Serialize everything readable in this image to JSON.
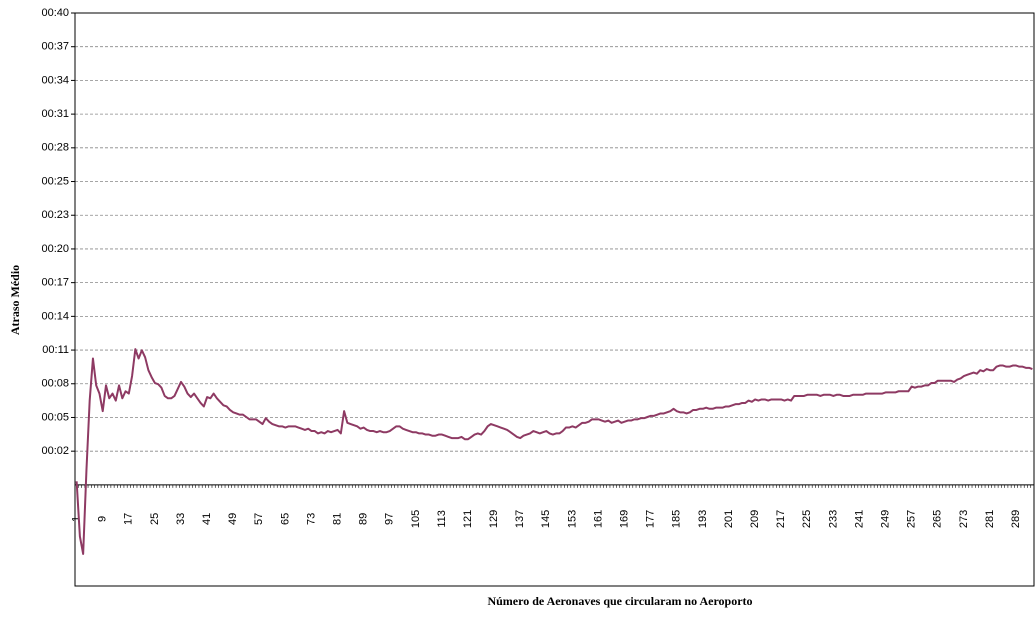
{
  "chart_data": {
    "type": "line",
    "x_label": "Número de Aeronaves que circularam  no Aeroporto",
    "y_label": "Atraso Médio",
    "color": "#8e3a63",
    "grid": true,
    "ylim": [
      -8.64,
      40.32
    ],
    "yticks": [
      {
        "value": 2.88,
        "label": "00:02"
      },
      {
        "value": 5.76,
        "label": "00:05"
      },
      {
        "value": 8.64,
        "label": "00:08"
      },
      {
        "value": 11.52,
        "label": "00:11"
      },
      {
        "value": 14.4,
        "label": "00:14"
      },
      {
        "value": 17.28,
        "label": "00:17"
      },
      {
        "value": 20.16,
        "label": "00:20"
      },
      {
        "value": 23.04,
        "label": "00:23"
      },
      {
        "value": 25.92,
        "label": "00:25"
      },
      {
        "value": 28.8,
        "label": "00:28"
      },
      {
        "value": 31.68,
        "label": "00:31"
      },
      {
        "value": 34.56,
        "label": "00:34"
      },
      {
        "value": 37.44,
        "label": "00:37"
      },
      {
        "value": 40.32,
        "label": "00:40"
      }
    ],
    "categories": [
      1,
      null,
      null,
      null,
      null,
      null,
      null,
      null,
      9,
      null,
      null,
      null,
      null,
      null,
      null,
      null,
      17,
      null,
      null,
      null,
      null,
      null,
      null,
      null,
      25,
      null,
      null,
      null,
      null,
      null,
      null,
      null,
      33,
      null,
      null,
      null,
      null,
      null,
      null,
      null,
      41,
      null,
      null,
      null,
      null,
      null,
      null,
      null,
      49,
      null,
      null,
      null,
      null,
      null,
      null,
      null,
      57,
      null,
      null,
      null,
      null,
      null,
      null,
      null,
      65,
      null,
      null,
      null,
      null,
      null,
      null,
      null,
      73,
      null,
      null,
      null,
      null,
      null,
      null,
      null,
      81,
      null,
      null,
      null,
      null,
      null,
      null,
      null,
      89,
      null,
      null,
      null,
      null,
      null,
      null,
      null,
      97,
      null,
      null,
      null,
      null,
      null,
      null,
      null,
      105,
      null,
      null,
      null,
      null,
      null,
      null,
      null,
      113,
      null,
      null,
      null,
      null,
      null,
      null,
      null,
      121,
      null,
      null,
      null,
      null,
      null,
      null,
      null,
      129,
      null,
      null,
      null,
      null,
      null,
      null,
      null,
      137,
      null,
      null,
      null,
      null,
      null,
      null,
      null,
      145,
      null,
      null,
      null,
      null,
      null,
      null,
      null,
      153,
      null,
      null,
      null,
      null,
      null,
      null,
      null,
      161,
      null,
      null,
      null,
      null,
      null,
      null,
      null,
      169,
      null,
      null,
      null,
      null,
      null,
      null,
      null,
      177,
      null,
      null,
      null,
      null,
      null,
      null,
      null,
      185,
      null,
      null,
      null,
      null,
      null,
      null,
      null,
      193,
      null,
      null,
      null,
      null,
      null,
      null,
      null,
      201,
      null,
      null,
      null,
      null,
      null,
      null,
      null,
      209,
      null,
      null,
      null,
      null,
      null,
      null,
      null,
      217,
      null,
      null,
      null,
      null,
      null,
      null,
      null,
      225,
      null,
      null,
      null,
      null,
      null,
      null,
      null,
      233,
      null,
      null,
      null,
      null,
      null,
      null,
      null,
      241,
      null,
      null,
      null,
      null,
      null,
      null,
      null,
      249,
      null,
      null,
      null,
      null,
      null,
      null,
      null,
      257,
      null,
      null,
      null,
      null,
      null,
      null,
      null,
      265,
      null,
      null,
      null,
      null,
      null,
      null,
      null,
      273,
      null,
      null,
      null,
      null,
      null,
      null,
      null,
      281,
      null,
      null,
      null,
      null,
      null,
      null,
      null,
      289,
      null,
      null,
      null,
      null,
      null
    ],
    "values": [
      0.3,
      -4.4,
      -5.9,
      1.2,
      7.2,
      10.8,
      8.5,
      7.8,
      6.3,
      8.5,
      7.4,
      7.8,
      7.2,
      8.5,
      7.4,
      8.0,
      7.8,
      9.3,
      11.6,
      10.8,
      11.5,
      10.9,
      9.8,
      9.2,
      8.7,
      8.6,
      8.3,
      7.6,
      7.4,
      7.4,
      7.6,
      8.2,
      8.8,
      8.4,
      7.8,
      7.5,
      7.8,
      7.4,
      7.0,
      6.7,
      7.5,
      7.4,
      7.8,
      7.4,
      7.1,
      6.8,
      6.7,
      6.4,
      6.2,
      6.1,
      6.0,
      6.0,
      5.8,
      5.6,
      5.6,
      5.6,
      5.4,
      5.2,
      5.7,
      5.4,
      5.2,
      5.1,
      5.0,
      5.0,
      4.9,
      5.0,
      5.0,
      5.0,
      4.9,
      4.8,
      4.7,
      4.8,
      4.6,
      4.6,
      4.4,
      4.5,
      4.4,
      4.6,
      4.5,
      4.6,
      4.7,
      4.4,
      6.3,
      5.3,
      5.2,
      5.1,
      5.0,
      4.8,
      4.9,
      4.7,
      4.6,
      4.6,
      4.5,
      4.6,
      4.5,
      4.5,
      4.6,
      4.8,
      5.0,
      5.0,
      4.8,
      4.7,
      4.6,
      4.5,
      4.5,
      4.4,
      4.4,
      4.3,
      4.3,
      4.2,
      4.2,
      4.3,
      4.3,
      4.2,
      4.1,
      4.0,
      4.0,
      4.0,
      4.1,
      3.9,
      3.9,
      4.1,
      4.3,
      4.4,
      4.3,
      4.6,
      5.0,
      5.2,
      5.1,
      5.0,
      4.9,
      4.8,
      4.7,
      4.5,
      4.3,
      4.1,
      4.0,
      4.2,
      4.3,
      4.4,
      4.6,
      4.5,
      4.4,
      4.5,
      4.6,
      4.4,
      4.3,
      4.4,
      4.4,
      4.6,
      4.9,
      4.9,
      5.0,
      4.9,
      5.1,
      5.3,
      5.3,
      5.4,
      5.6,
      5.6,
      5.6,
      5.5,
      5.4,
      5.5,
      5.3,
      5.4,
      5.5,
      5.3,
      5.4,
      5.5,
      5.5,
      5.6,
      5.6,
      5.7,
      5.7,
      5.8,
      5.9,
      5.9,
      6.0,
      6.1,
      6.1,
      6.2,
      6.3,
      6.5,
      6.3,
      6.2,
      6.2,
      6.1,
      6.2,
      6.4,
      6.4,
      6.5,
      6.5,
      6.6,
      6.5,
      6.5,
      6.6,
      6.6,
      6.6,
      6.7,
      6.7,
      6.8,
      6.9,
      6.9,
      7.0,
      7.0,
      7.2,
      7.1,
      7.3,
      7.2,
      7.3,
      7.3,
      7.2,
      7.3,
      7.3,
      7.3,
      7.3,
      7.2,
      7.3,
      7.2,
      7.6,
      7.6,
      7.6,
      7.6,
      7.7,
      7.7,
      7.7,
      7.7,
      7.6,
      7.7,
      7.7,
      7.7,
      7.6,
      7.7,
      7.7,
      7.6,
      7.6,
      7.6,
      7.7,
      7.7,
      7.7,
      7.7,
      7.8,
      7.8,
      7.8,
      7.8,
      7.8,
      7.8,
      7.9,
      7.9,
      7.9,
      7.9,
      8.0,
      8.0,
      8.0,
      8.0,
      8.4,
      8.3,
      8.4,
      8.4,
      8.5,
      8.5,
      8.7,
      8.7,
      8.9,
      8.9,
      8.9,
      8.9,
      8.9,
      8.8,
      9.0,
      9.1,
      9.3,
      9.4,
      9.5,
      9.6,
      9.5,
      9.8,
      9.7,
      9.9,
      9.8,
      9.8,
      10.1,
      10.2,
      10.2,
      10.1,
      10.1,
      10.2,
      10.2,
      10.1,
      10.1,
      10.0,
      10.0,
      9.9
    ]
  }
}
